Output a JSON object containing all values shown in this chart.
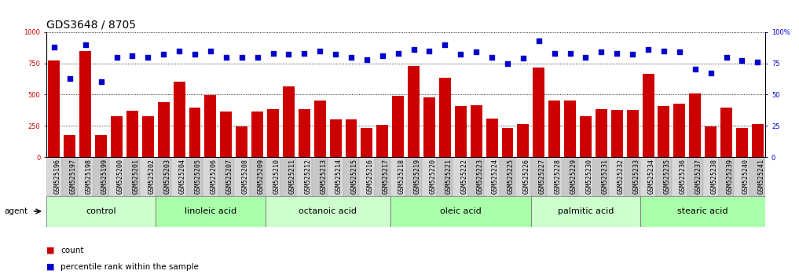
{
  "title": "GDS3648 / 8705",
  "samples": [
    "GSM525196",
    "GSM525197",
    "GSM525198",
    "GSM525199",
    "GSM525200",
    "GSM525201",
    "GSM525202",
    "GSM525203",
    "GSM525204",
    "GSM525205",
    "GSM525206",
    "GSM525207",
    "GSM525208",
    "GSM525209",
    "GSM525210",
    "GSM525211",
    "GSM525212",
    "GSM525213",
    "GSM525214",
    "GSM525215",
    "GSM525216",
    "GSM525217",
    "GSM525218",
    "GSM525219",
    "GSM525220",
    "GSM525221",
    "GSM525222",
    "GSM525223",
    "GSM525224",
    "GSM525225",
    "GSM525226",
    "GSM525227",
    "GSM525228",
    "GSM525229",
    "GSM525230",
    "GSM525231",
    "GSM525232",
    "GSM525233",
    "GSM525234",
    "GSM525235",
    "GSM525236",
    "GSM525237",
    "GSM525238",
    "GSM525239",
    "GSM525240",
    "GSM525241"
  ],
  "counts": [
    775,
    175,
    850,
    175,
    325,
    370,
    325,
    440,
    600,
    395,
    495,
    365,
    248,
    365,
    385,
    565,
    385,
    455,
    300,
    300,
    230,
    255,
    488,
    730,
    475,
    635,
    405,
    415,
    307,
    230,
    265,
    715,
    455,
    455,
    325,
    385,
    375,
    375,
    665,
    408,
    425,
    508,
    248,
    397,
    235,
    265
  ],
  "percentile": [
    88,
    63,
    90,
    60,
    80,
    81,
    80,
    82,
    85,
    82,
    85,
    80,
    80,
    80,
    83,
    82,
    83,
    85,
    82,
    80,
    78,
    81,
    83,
    86,
    85,
    90,
    82,
    84,
    80,
    75,
    79,
    93,
    83,
    83,
    80,
    84,
    83,
    82,
    86,
    85,
    84,
    70,
    67,
    80,
    77,
    76
  ],
  "groups": [
    {
      "label": "control",
      "start": 0,
      "end": 7,
      "color": "#ccffcc"
    },
    {
      "label": "linoleic acid",
      "start": 7,
      "end": 14,
      "color": "#aaffaa"
    },
    {
      "label": "octanoic acid",
      "start": 14,
      "end": 22,
      "color": "#ccffcc"
    },
    {
      "label": "oleic acid",
      "start": 22,
      "end": 31,
      "color": "#aaffaa"
    },
    {
      "label": "palmitic acid",
      "start": 31,
      "end": 38,
      "color": "#ccffcc"
    },
    {
      "label": "stearic acid",
      "start": 38,
      "end": 46,
      "color": "#aaffaa"
    }
  ],
  "bar_color": "#cc0000",
  "dot_color": "#0000cc",
  "left_ylim": [
    0,
    1000
  ],
  "right_ylim": [
    0,
    100
  ],
  "left_yticks": [
    0,
    250,
    500,
    750,
    1000
  ],
  "right_yticks": [
    0,
    25,
    50,
    75,
    100
  ],
  "title_fontsize": 10,
  "tick_fontsize": 6,
  "group_fontsize": 8,
  "legend_fontsize": 7.5,
  "agent_label": "agent"
}
